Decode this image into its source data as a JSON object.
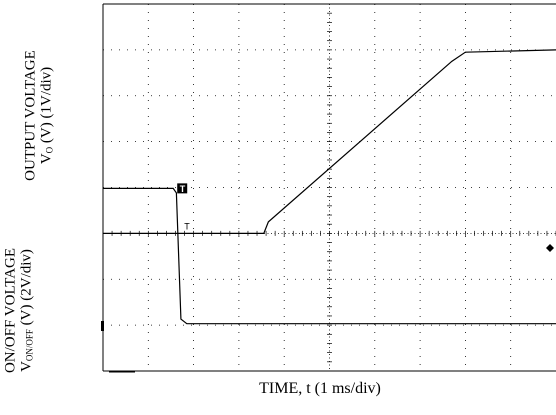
{
  "chart_data": {
    "type": "line",
    "xlabel": "TIME, t (1 ms/div)",
    "x_unit": "ms",
    "xlim": [
      0,
      10
    ],
    "grid": true,
    "divisions": {
      "x": 10,
      "y": 8
    },
    "panels": [
      {
        "name": "output",
        "ylabel": {
          "line1": "OUTPUT VOLTAGE",
          "line2_pre": "V",
          "line2_sub": "O",
          "line2_post": " (V) (1V/div)"
        },
        "unit": "V",
        "v_per_div": 1,
        "series": {
          "color": "#000000",
          "points": [
            [
              0,
              0
            ],
            [
              3.55,
              0
            ],
            [
              3.65,
              0.25
            ],
            [
              7.7,
              3.75
            ],
            [
              8.0,
              3.95
            ],
            [
              10,
              4.0
            ]
          ]
        }
      },
      {
        "name": "onoff",
        "ylabel": {
          "line1": "ON/OFF VOLTAGE",
          "line2_pre": "V",
          "line2_sub": "ON/OFF",
          "line2_post": " (V) (2V/div)"
        },
        "unit": "V",
        "v_per_div": 2,
        "series": {
          "color": "#000000",
          "points": [
            [
              0,
              6.0
            ],
            [
              1.55,
              6.0
            ],
            [
              1.62,
              5.8
            ],
            [
              1.72,
              0.3
            ],
            [
              1.85,
              0.1
            ],
            [
              10,
              0.1
            ]
          ]
        }
      }
    ],
    "markers": {
      "trigger_label": "T",
      "trigger_x": 1.55
    }
  }
}
